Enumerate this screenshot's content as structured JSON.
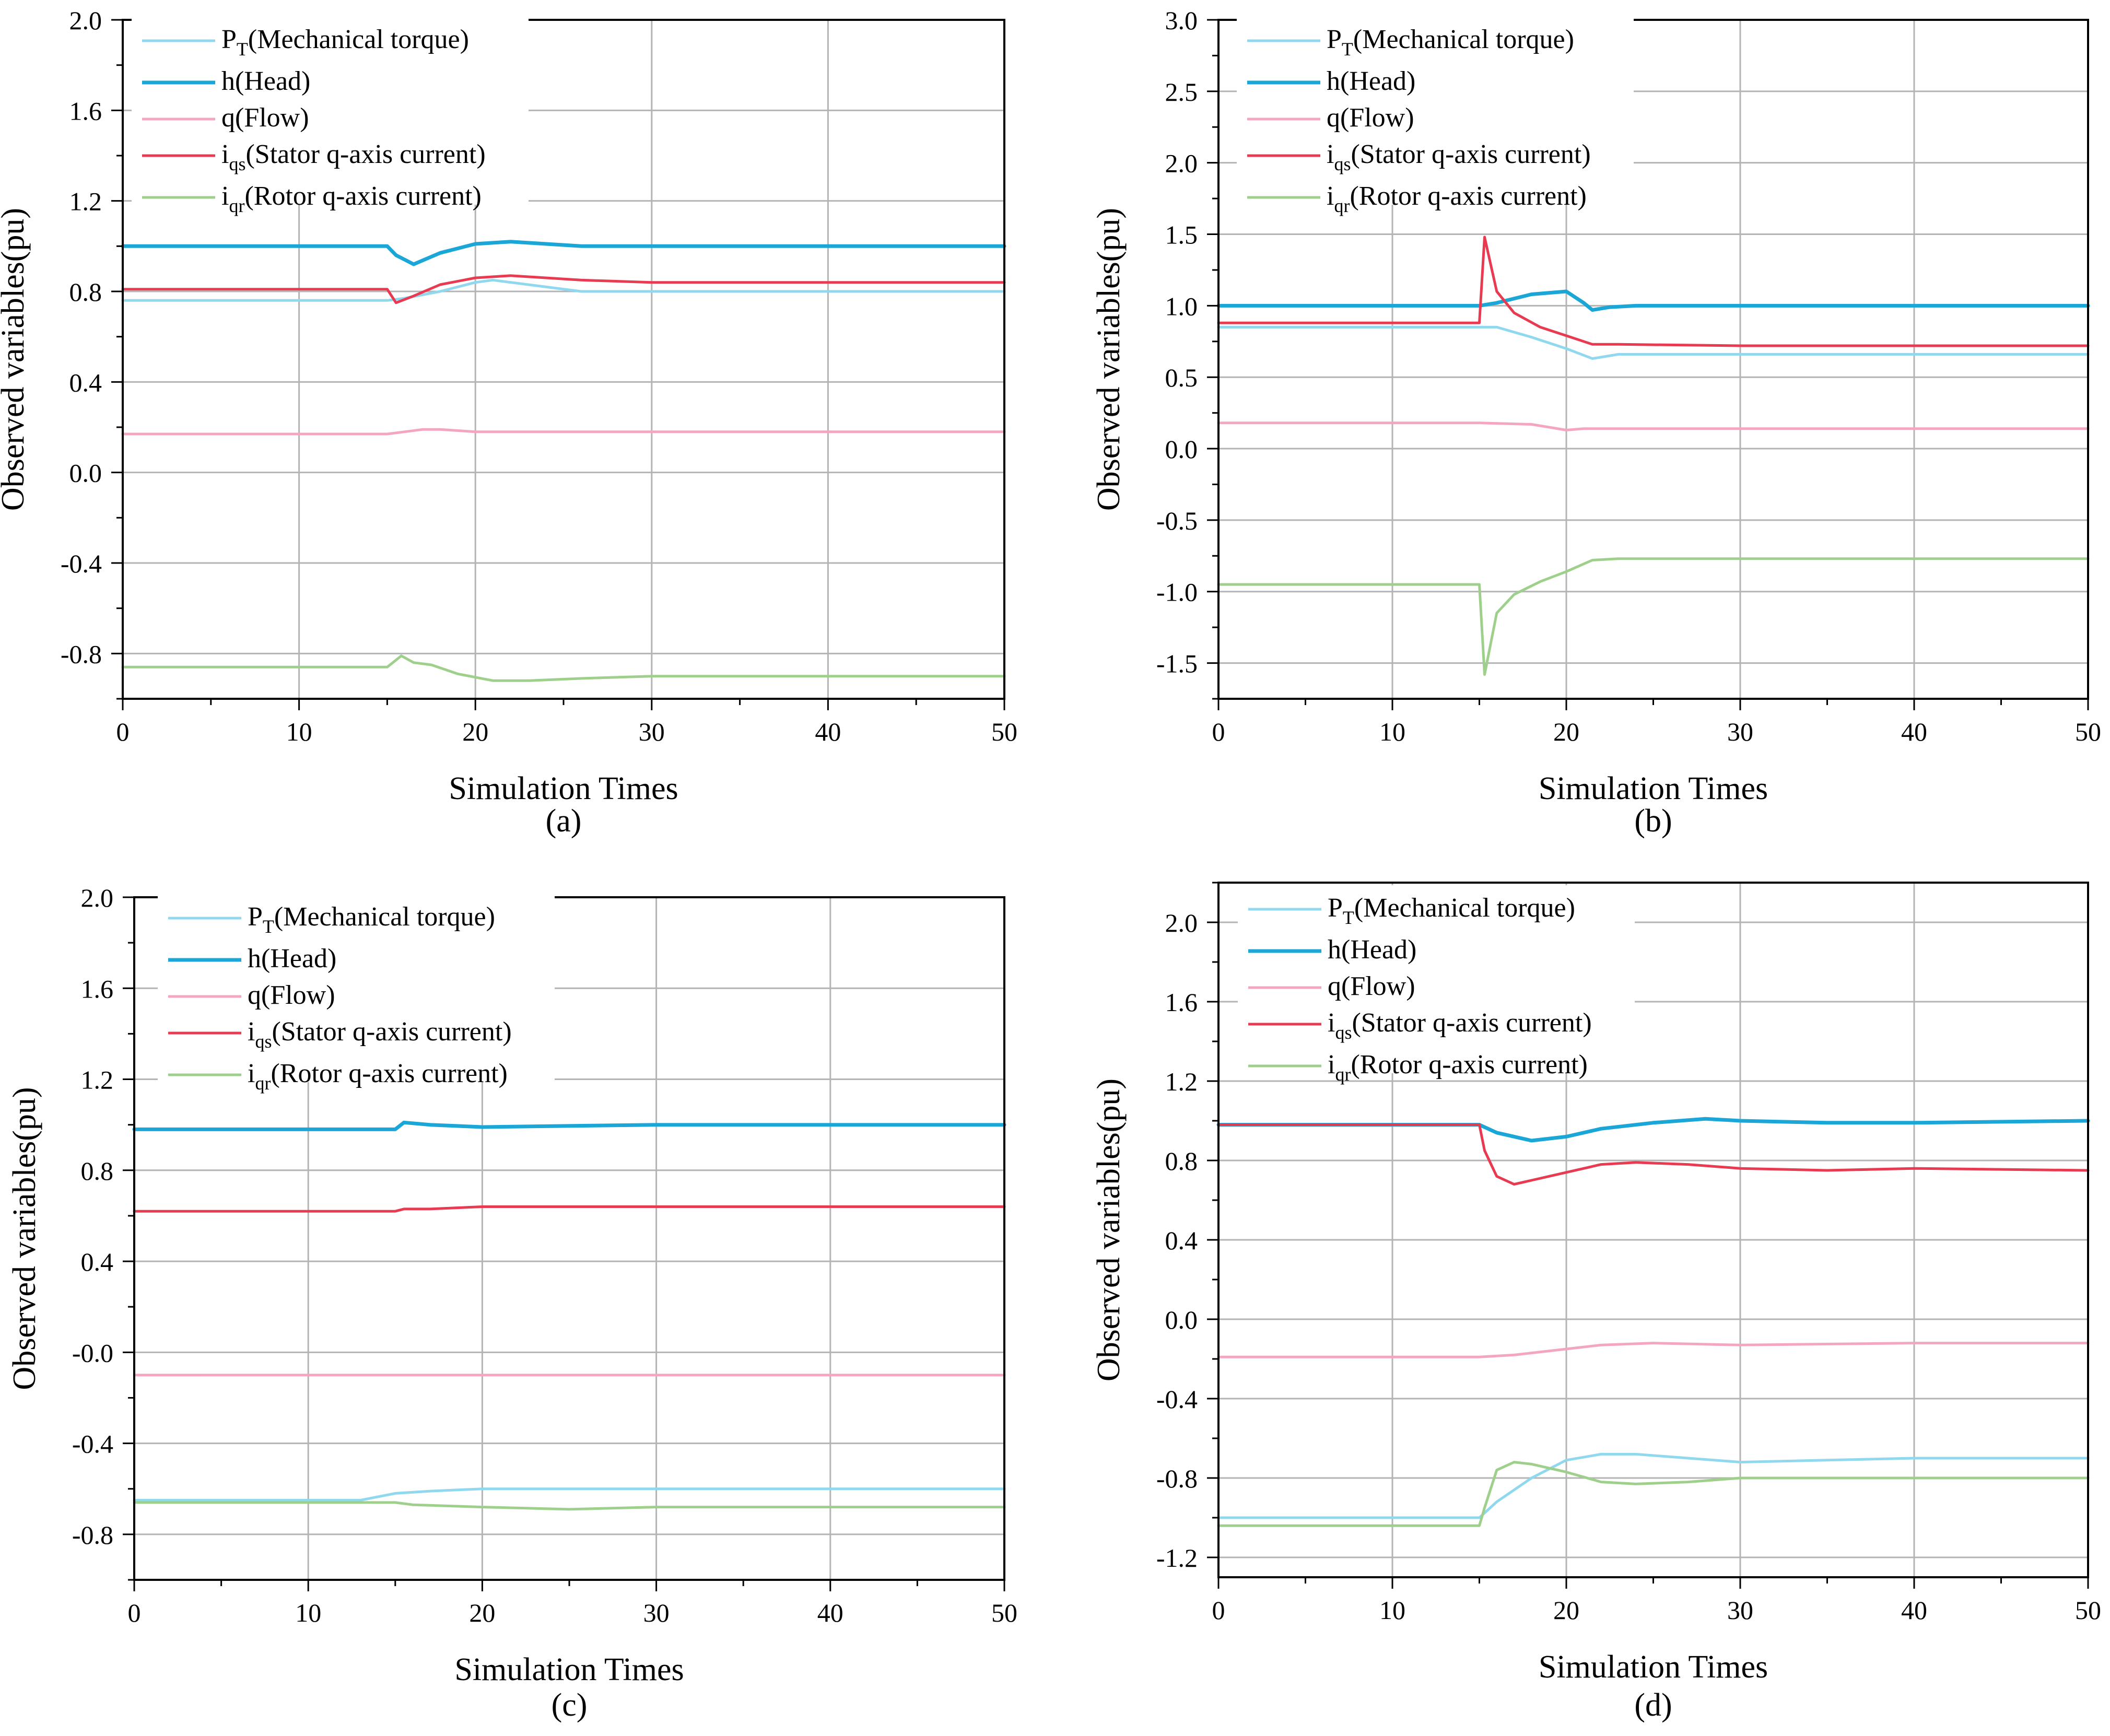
{
  "colors": {
    "pt": "#8fd8ee",
    "h": "#1aa7d8",
    "q": "#f4a6c0",
    "iqs": "#e83a50",
    "iqr": "#9ed08c",
    "grid": "#b4b4b4",
    "axis": "#000000"
  },
  "legend_labels": [
    {
      "key": "pt",
      "main": "P",
      "sub": "T",
      "rest": "(Mechanical torque)"
    },
    {
      "key": "h",
      "main": "h(Head)",
      "sub": "",
      "rest": ""
    },
    {
      "key": "q",
      "main": "q(Flow)",
      "sub": "",
      "rest": ""
    },
    {
      "key": "iqs",
      "main": "i",
      "sub": "qs",
      "rest": "(Stator q-axis current)"
    },
    {
      "key": "iqr",
      "main": "i",
      "sub": "qr",
      "rest": "(Rotor q-axis current)"
    }
  ],
  "chart_data": [
    {
      "type": "line",
      "panel_label": "(a)",
      "xlabel": "Simulation Times",
      "ylabel": "Observed variables(pu)",
      "xlim": [
        0,
        50
      ],
      "ylim": [
        -1.0,
        2.0
      ],
      "xticks": [
        0,
        10,
        20,
        30,
        40,
        50
      ],
      "yticks": [
        -0.8,
        -0.4,
        0.0,
        0.4,
        0.8,
        1.2,
        1.6,
        2.0
      ],
      "ytick_labels": [
        "-0.8",
        "-0.4",
        "0.0",
        "0.4",
        "0.8",
        "1.2",
        "1.6",
        "2.0"
      ],
      "grid": true,
      "legend": "top-left",
      "series": [
        {
          "key": "pt",
          "x": [
            0,
            5,
            15,
            16,
            18,
            20,
            21,
            23,
            26,
            30,
            40,
            50
          ],
          "y": [
            0.76,
            0.76,
            0.76,
            0.77,
            0.8,
            0.84,
            0.85,
            0.83,
            0.8,
            0.8,
            0.8,
            0.8
          ]
        },
        {
          "key": "h",
          "x": [
            0,
            5,
            15,
            15.5,
            16.5,
            18,
            20,
            22,
            24,
            26,
            30,
            50
          ],
          "y": [
            1.0,
            1.0,
            1.0,
            0.96,
            0.92,
            0.97,
            1.01,
            1.02,
            1.01,
            1.0,
            1.0,
            1.0
          ]
        },
        {
          "key": "q",
          "x": [
            0,
            15,
            16,
            17,
            18,
            20,
            25,
            50
          ],
          "y": [
            0.17,
            0.17,
            0.18,
            0.19,
            0.19,
            0.18,
            0.18,
            0.18
          ]
        },
        {
          "key": "iqs",
          "x": [
            0,
            15,
            15.5,
            16.5,
            18,
            20,
            22,
            24,
            26,
            30,
            50
          ],
          "y": [
            0.81,
            0.81,
            0.75,
            0.78,
            0.83,
            0.86,
            0.87,
            0.86,
            0.85,
            0.84,
            0.84
          ]
        },
        {
          "key": "iqr",
          "x": [
            0,
            15,
            15.8,
            16.5,
            17.5,
            19,
            21,
            23,
            26,
            30,
            50
          ],
          "y": [
            -0.86,
            -0.86,
            -0.81,
            -0.84,
            -0.85,
            -0.89,
            -0.92,
            -0.92,
            -0.91,
            -0.9,
            -0.9
          ]
        }
      ]
    },
    {
      "type": "line",
      "panel_label": "(b)",
      "xlabel": "Simulation Times",
      "ylabel": "Observed variables(pu)",
      "xlim": [
        0,
        50
      ],
      "ylim": [
        -1.75,
        3.0
      ],
      "xticks": [
        0,
        10,
        20,
        30,
        40,
        50
      ],
      "yticks": [
        -1.5,
        -1.0,
        -0.5,
        0.0,
        0.5,
        1.0,
        1.5,
        2.0,
        2.5,
        3.0
      ],
      "ytick_labels": [
        "-1.5",
        "-1.0",
        "-0.5",
        "0.0",
        "0.5",
        "1.0",
        "1.5",
        "2.0",
        "2.5",
        "3.0"
      ],
      "grid": true,
      "legend": "top-left",
      "series": [
        {
          "key": "pt",
          "x": [
            0,
            15,
            16,
            18,
            20,
            21.5,
            23,
            30,
            50
          ],
          "y": [
            0.85,
            0.85,
            0.85,
            0.78,
            0.7,
            0.63,
            0.66,
            0.66,
            0.66
          ]
        },
        {
          "key": "h",
          "x": [
            0,
            15,
            16,
            18,
            20,
            21,
            21.5,
            22.5,
            24,
            30,
            50
          ],
          "y": [
            1.0,
            1.0,
            1.02,
            1.08,
            1.1,
            1.02,
            0.97,
            0.99,
            1.0,
            1.0,
            1.0
          ]
        },
        {
          "key": "q",
          "x": [
            0,
            15,
            18,
            20,
            21,
            22,
            30,
            50
          ],
          "y": [
            0.18,
            0.18,
            0.17,
            0.13,
            0.14,
            0.14,
            0.14,
            0.14
          ]
        },
        {
          "key": "iqs",
          "x": [
            0,
            15,
            15.3,
            16,
            17,
            18.5,
            20,
            21.5,
            23,
            30,
            50
          ],
          "y": [
            0.88,
            0.88,
            1.48,
            1.1,
            0.95,
            0.85,
            0.79,
            0.73,
            0.73,
            0.72,
            0.72
          ]
        },
        {
          "key": "iqr",
          "x": [
            0,
            15,
            15.3,
            16,
            17,
            18.5,
            20,
            21.5,
            23,
            30,
            50
          ],
          "y": [
            -0.95,
            -0.95,
            -1.58,
            -1.15,
            -1.02,
            -0.93,
            -0.86,
            -0.78,
            -0.77,
            -0.77,
            -0.77
          ]
        }
      ]
    },
    {
      "type": "line",
      "panel_label": "(c)",
      "xlabel": "Simulation Times",
      "ylabel": "Observed variables(pu)",
      "xlim": [
        0,
        50
      ],
      "ylim": [
        -1.0,
        2.0
      ],
      "xticks": [
        0,
        10,
        20,
        30,
        40,
        50
      ],
      "yticks": [
        -0.8,
        -0.4,
        0.0,
        0.4,
        0.8,
        1.2,
        1.6,
        2.0
      ],
      "ytick_labels": [
        "-0.8",
        "-0.4",
        "-0.0",
        "0.4",
        "0.8",
        "1.2",
        "1.6",
        "2.0"
      ],
      "grid": true,
      "legend": "top-left",
      "series": [
        {
          "key": "pt",
          "x": [
            0,
            13,
            15,
            17,
            20,
            25,
            30,
            50
          ],
          "y": [
            -0.65,
            -0.65,
            -0.62,
            -0.61,
            -0.6,
            -0.6,
            -0.6,
            -0.6
          ]
        },
        {
          "key": "h",
          "x": [
            0,
            15,
            15.5,
            17,
            20,
            30,
            50
          ],
          "y": [
            0.98,
            0.98,
            1.01,
            1.0,
            0.99,
            1.0,
            1.0
          ]
        },
        {
          "key": "q",
          "x": [
            0,
            15,
            20,
            30,
            50
          ],
          "y": [
            -0.1,
            -0.1,
            -0.1,
            -0.1,
            -0.1
          ]
        },
        {
          "key": "iqs",
          "x": [
            0,
            15,
            15.5,
            17,
            20,
            30,
            50
          ],
          "y": [
            0.62,
            0.62,
            0.63,
            0.63,
            0.64,
            0.64,
            0.64
          ]
        },
        {
          "key": "iqr",
          "x": [
            0,
            15,
            16,
            20,
            25,
            30,
            50
          ],
          "y": [
            -0.66,
            -0.66,
            -0.67,
            -0.68,
            -0.69,
            -0.68,
            -0.68
          ]
        }
      ]
    },
    {
      "type": "line",
      "panel_label": "(d)",
      "xlabel": "Simulation Times",
      "ylabel": "Observed variables(pu)",
      "xlim": [
        0,
        50
      ],
      "ylim": [
        -1.3,
        2.2
      ],
      "xticks": [
        0,
        10,
        20,
        30,
        40,
        50
      ],
      "yticks": [
        -1.2,
        -0.8,
        -0.4,
        0.0,
        0.4,
        0.8,
        1.2,
        1.6,
        2.0
      ],
      "ytick_labels": [
        "-1.2",
        "-0.8",
        "-0.4",
        "0.0",
        "0.4",
        "0.8",
        "1.2",
        "1.6",
        "2.0"
      ],
      "grid": true,
      "legend": "top-left",
      "series": [
        {
          "key": "pt",
          "x": [
            0,
            15,
            16,
            18,
            20,
            22,
            24,
            27,
            30,
            35,
            40,
            50
          ],
          "y": [
            -1.0,
            -1.0,
            -0.92,
            -0.8,
            -0.71,
            -0.68,
            -0.68,
            -0.7,
            -0.72,
            -0.71,
            -0.7,
            -0.7
          ]
        },
        {
          "key": "h",
          "x": [
            0,
            15,
            16,
            18,
            20,
            22,
            25,
            28,
            30,
            35,
            40,
            50
          ],
          "y": [
            0.98,
            0.98,
            0.94,
            0.9,
            0.92,
            0.96,
            0.99,
            1.01,
            1.0,
            0.99,
            0.99,
            1.0
          ]
        },
        {
          "key": "q",
          "x": [
            0,
            15,
            17,
            20,
            22,
            25,
            30,
            40,
            50
          ],
          "y": [
            -0.19,
            -0.19,
            -0.18,
            -0.15,
            -0.13,
            -0.12,
            -0.13,
            -0.12,
            -0.12
          ]
        },
        {
          "key": "iqs",
          "x": [
            0,
            15,
            15.3,
            16,
            17,
            18,
            20,
            22,
            24,
            27,
            30,
            35,
            40,
            50
          ],
          "y": [
            0.98,
            0.98,
            0.85,
            0.72,
            0.68,
            0.7,
            0.74,
            0.78,
            0.79,
            0.78,
            0.76,
            0.75,
            0.76,
            0.75
          ]
        },
        {
          "key": "iqr",
          "x": [
            0,
            15,
            15.3,
            16,
            17,
            18,
            20,
            22,
            24,
            27,
            30,
            35,
            40,
            50
          ],
          "y": [
            -1.04,
            -1.04,
            -0.95,
            -0.76,
            -0.72,
            -0.73,
            -0.77,
            -0.82,
            -0.83,
            -0.82,
            -0.8,
            -0.8,
            -0.8,
            -0.8
          ]
        }
      ]
    }
  ]
}
